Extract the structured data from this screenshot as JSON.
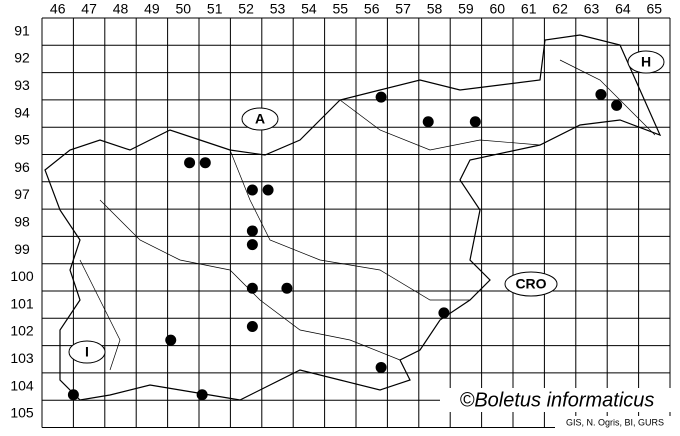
{
  "columns": [
    46,
    47,
    48,
    49,
    50,
    51,
    52,
    53,
    54,
    55,
    56,
    57,
    58,
    59,
    60,
    61,
    62,
    63,
    64,
    65
  ],
  "rows": [
    91,
    92,
    93,
    94,
    95,
    96,
    97,
    98,
    99,
    100,
    101,
    102,
    103,
    104,
    105
  ],
  "points": [
    {
      "col": 50.2,
      "row": 95.8
    },
    {
      "col": 50.7,
      "row": 95.8
    },
    {
      "col": 56.3,
      "row": 93.4
    },
    {
      "col": 57.8,
      "row": 94.3
    },
    {
      "col": 59.3,
      "row": 94.3
    },
    {
      "col": 63.3,
      "row": 93.3
    },
    {
      "col": 63.8,
      "row": 93.7
    },
    {
      "col": 52.2,
      "row": 96.8
    },
    {
      "col": 52.7,
      "row": 96.8
    },
    {
      "col": 52.2,
      "row": 98.3
    },
    {
      "col": 52.2,
      "row": 98.8
    },
    {
      "col": 52.2,
      "row": 100.4
    },
    {
      "col": 53.3,
      "row": 100.4
    },
    {
      "col": 52.2,
      "row": 101.8
    },
    {
      "col": 49.6,
      "row": 102.3
    },
    {
      "col": 56.3,
      "row": 103.3
    },
    {
      "col": 58.3,
      "row": 101.3
    },
    {
      "col": 46.5,
      "row": 104.3
    },
    {
      "col": 50.6,
      "row": 104.3
    }
  ],
  "country_labels": {
    "austria": "A",
    "hungary": "H",
    "croatia": "CRO",
    "italy": "I"
  },
  "copyright": "©Boletus informaticus",
  "credits": "GIS, N. Ogris, BI, GURS"
}
